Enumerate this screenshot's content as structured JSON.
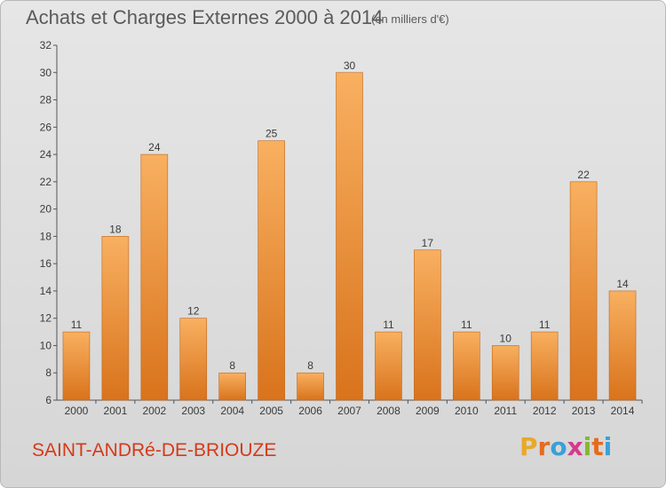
{
  "chart_data": {
    "type": "bar",
    "title": "Achats et Charges Externes 2000 à 2014",
    "subtitle": "(en milliers d'€)",
    "categories": [
      "2000",
      "2001",
      "2002",
      "2003",
      "2004",
      "2005",
      "2006",
      "2007",
      "2008",
      "2009",
      "2010",
      "2011",
      "2012",
      "2013",
      "2014"
    ],
    "values": [
      11,
      18,
      24,
      12,
      8,
      25,
      8,
      30,
      11,
      17,
      11,
      10,
      11,
      22,
      14
    ],
    "ylim": [
      6,
      32
    ],
    "yticks": [
      6,
      8,
      10,
      12,
      14,
      16,
      18,
      20,
      22,
      24,
      26,
      28,
      30,
      32
    ],
    "grid": false,
    "legend": "none",
    "bar_color": "#f0912e",
    "bar_color_light": "#f8b060",
    "bar_color_dark": "#d9731c"
  },
  "footer": {
    "commune": "SAINT-ANDRé-DE-BRIOUZE",
    "brand_letters": [
      "P",
      "r",
      "o",
      "x",
      "i",
      "t",
      "i"
    ],
    "brand_colors": [
      "#e8a92a",
      "#e56b1f",
      "#3aa0d8",
      "#d63a8c",
      "#86b734",
      "#e56b1f",
      "#3aa0d8"
    ]
  }
}
